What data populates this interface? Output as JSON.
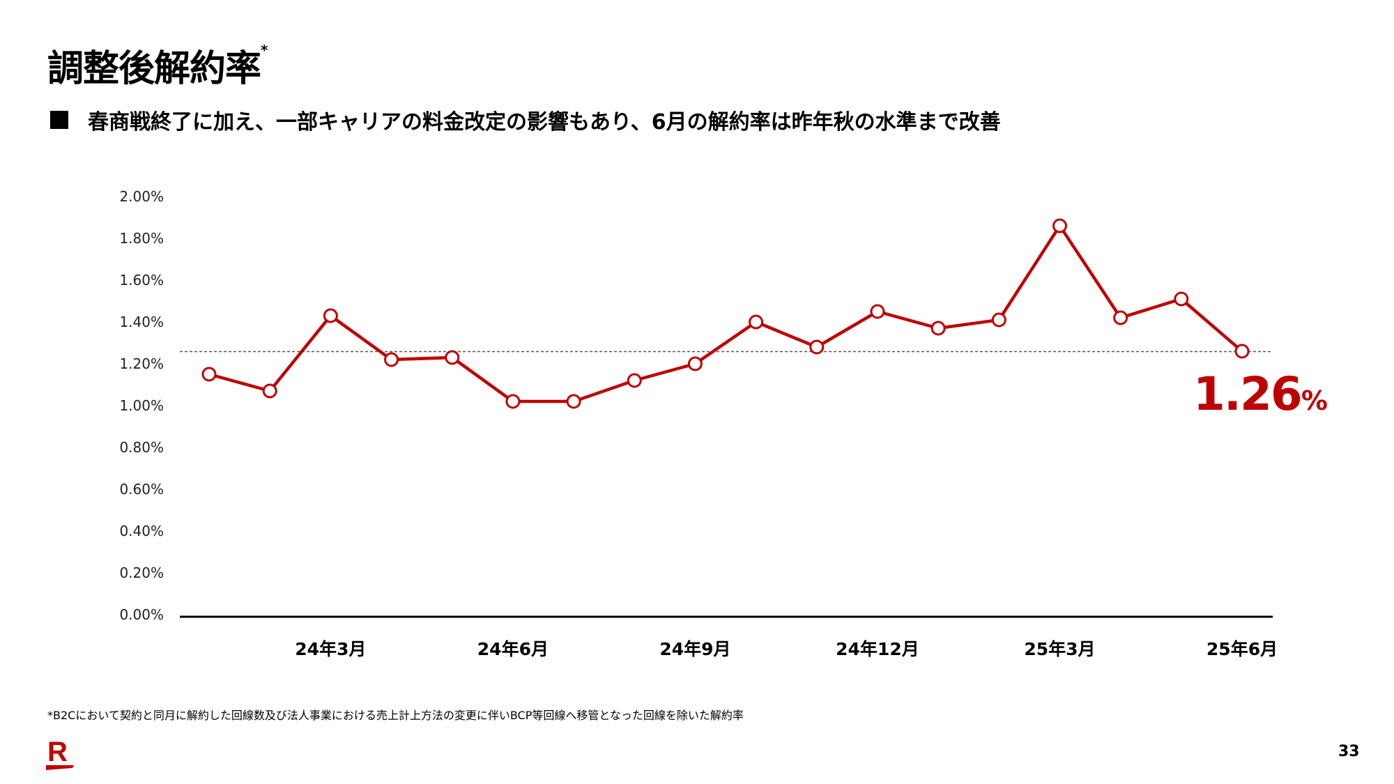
{
  "title": "調整後解約率",
  "title_mark": "*",
  "subtitle": "春商戦終了に加え、一部キャリアの料金改定の影響もあり、6月の解約率は昨年秋の水準まで改善",
  "footnote": "*B2Cにおいて契約と同月に解約した回線数及び法人事業における売上計上方法の変更に伴いBCP等回線へ移管となった回線を除いた解約率",
  "page_number": "33",
  "logo_text": "R",
  "colors": {
    "series": "#BF0000",
    "axis": "#000000",
    "reference": "#555555"
  },
  "chart_data": {
    "type": "line",
    "title": "調整後解約率",
    "xlabel": "",
    "ylabel": "",
    "ylim": [
      0,
      2.0
    ],
    "y_ticks": [
      "0.00%",
      "0.20%",
      "0.40%",
      "0.60%",
      "0.80%",
      "1.00%",
      "1.20%",
      "1.40%",
      "1.60%",
      "1.80%",
      "2.00%"
    ],
    "x": [
      "24年1月",
      "24年2月",
      "24年3月",
      "24年4月",
      "24年5月",
      "24年6月",
      "24年7月",
      "24年8月",
      "24年9月",
      "24年10月",
      "24年11月",
      "24年12月",
      "25年1月",
      "25年2月",
      "25年3月",
      "25年4月",
      "25年5月",
      "25年6月"
    ],
    "x_tick_labels": [
      {
        "index": 2,
        "label": "24年3月"
      },
      {
        "index": 5,
        "label": "24年6月"
      },
      {
        "index": 8,
        "label": "24年9月"
      },
      {
        "index": 11,
        "label": "24年12月"
      },
      {
        "index": 14,
        "label": "25年3月"
      },
      {
        "index": 17,
        "label": "25年6月"
      }
    ],
    "series": [
      {
        "name": "調整後解約率",
        "values": [
          1.15,
          1.07,
          1.43,
          1.22,
          1.23,
          1.02,
          1.02,
          1.12,
          1.2,
          1.4,
          1.28,
          1.45,
          1.37,
          1.41,
          1.86,
          1.42,
          1.51,
          1.26
        ]
      }
    ],
    "reference_line": 1.26,
    "annotation": {
      "value": "1.26",
      "unit": "%"
    },
    "grid": false
  }
}
